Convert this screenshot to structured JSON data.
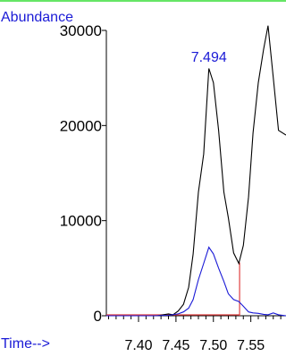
{
  "chart_data": {
    "type": "line",
    "ylabel": "Abundance",
    "xlabel": "Time-->",
    "annotation": "7.494",
    "annotation_x": 7.494,
    "xlim": [
      7.357,
      7.597
    ],
    "ylim": [
      0,
      30000
    ],
    "yticks": [
      0,
      10000,
      20000,
      30000
    ],
    "xticks": [
      7.4,
      7.45,
      7.5,
      7.55
    ],
    "xtick_labels": [
      "7.40",
      "7.45",
      "7.50",
      "7.55"
    ],
    "grid": false,
    "series": [
      {
        "color": "#000000",
        "x": [
          7.357,
          7.405,
          7.425,
          7.44,
          7.446,
          7.453,
          7.46,
          7.467,
          7.473,
          7.48,
          7.487,
          7.494,
          7.5,
          7.507,
          7.514,
          7.52,
          7.527,
          7.534,
          7.54,
          7.547,
          7.553,
          7.56,
          7.567,
          7.573,
          7.58,
          7.587,
          7.597
        ],
        "y": [
          0,
          0,
          0,
          200,
          100,
          500,
          1200,
          3000,
          6500,
          13000,
          17000,
          26000,
          24500,
          19500,
          13000,
          10300,
          6600,
          5500,
          7400,
          12500,
          19200,
          24500,
          28000,
          30500,
          25000,
          19500,
          19000
        ]
      },
      {
        "color": "#1a1ad6",
        "x": [
          7.357,
          7.42,
          7.44,
          7.453,
          7.46,
          7.467,
          7.473,
          7.48,
          7.487,
          7.494,
          7.5,
          7.507,
          7.514,
          7.52,
          7.527,
          7.534,
          7.54,
          7.547,
          7.553,
          7.56,
          7.567,
          7.573,
          7.58,
          7.587,
          7.597
        ],
        "y": [
          0,
          0,
          50,
          200,
          400,
          800,
          1700,
          3800,
          5500,
          7200,
          6500,
          5000,
          3600,
          2300,
          1700,
          1500,
          1000,
          400,
          300,
          250,
          150,
          100,
          300,
          100,
          0
        ]
      }
    ],
    "integration": {
      "color": "#e04040",
      "start": [
        7.357,
        0
      ],
      "end": [
        7.535,
        0
      ],
      "drop_x": 7.535,
      "drop_top": 5600
    }
  }
}
